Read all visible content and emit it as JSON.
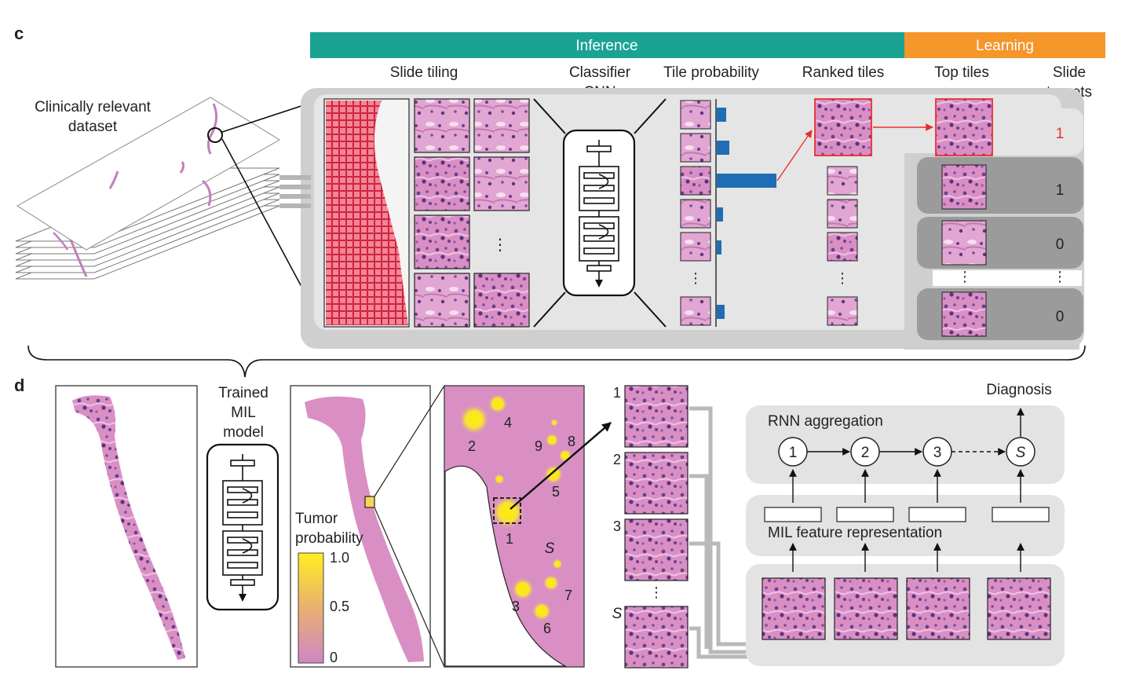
{
  "panel_c": {
    "letter": "c",
    "inference_label": "Inference",
    "learning_label": "Learning",
    "dataset_label": [
      "Clinically relevant",
      "dataset"
    ],
    "col_slide_tiling": "Slide tiling",
    "col_classifier": [
      "Classifier",
      "CNN"
    ],
    "col_tile_prob": "Tile probability",
    "col_ranked": "Ranked tiles",
    "col_top": "Top tiles",
    "col_targets": [
      "Slide",
      "targets"
    ],
    "targets": [
      "1",
      "1",
      "0",
      "0"
    ],
    "ellipsis": "⋮",
    "colors": {
      "inference": "#1aa393",
      "learning": "#f4962a",
      "bar": "#1f6eb5",
      "highlight": "#e8302e"
    }
  },
  "panel_d": {
    "letter": "d",
    "trained_label": [
      "Trained",
      "MIL",
      "model"
    ],
    "tumor_label": [
      "Tumor",
      "probability"
    ],
    "scale_ticks": [
      "1.0",
      "0.5",
      "0"
    ],
    "hotspots": [
      "1",
      "2",
      "3",
      "4",
      "5",
      "6",
      "7",
      "8",
      "9",
      "S"
    ],
    "tile_numbers": [
      "1",
      "2",
      "3",
      "S"
    ],
    "rnn_label": "RNN aggregation",
    "rnn_nodes": [
      "1",
      "2",
      "3",
      "S"
    ],
    "diagnosis_label": "Diagnosis",
    "mil_label": "MIL feature representation",
    "ellipsis": "⋮"
  }
}
